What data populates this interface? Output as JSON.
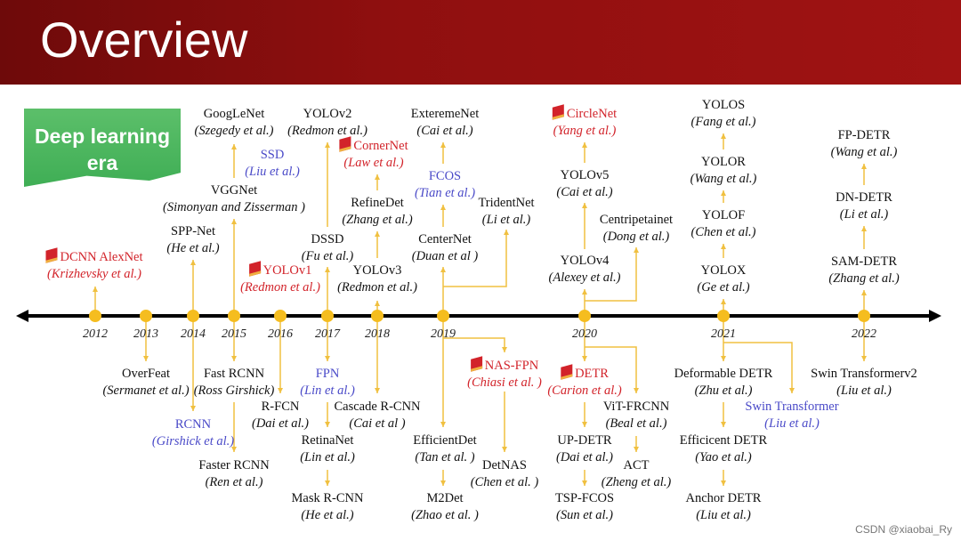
{
  "header": {
    "title": "Overview"
  },
  "banner": {
    "line1": "Deep learning",
    "line2": "era"
  },
  "colors": {
    "header": "#8f0f0f",
    "timeline": "#000000",
    "dots": "#f5bd1f",
    "arrows": "#f0c040",
    "highlight_red": "#d2232a",
    "highlight_blue": "#4a4ac8"
  },
  "years": [
    "2012",
    "2013",
    "2014",
    "2015",
    "2016",
    "2017",
    "2018",
    "2019",
    "2020",
    "2021",
    "2022"
  ],
  "nodes": [
    {
      "name": "GoogLeNet",
      "author": "(Szegedy et al.)",
      "style": "black"
    },
    {
      "name": "YOLOv2",
      "author": "(Redmon et al.)",
      "style": "black"
    },
    {
      "name": "ExteremeNet",
      "author": "(Cai et al.)",
      "style": "black"
    },
    {
      "name": "CornerNet",
      "author": "(Law et al.)",
      "style": "red",
      "flag": true
    },
    {
      "name": "SSD",
      "author": "(Liu et al.)",
      "style": "blue"
    },
    {
      "name": "FCOS",
      "author": "(Tian et al.)",
      "style": "blue"
    },
    {
      "name": "VGGNet",
      "author": "(Simonyan and Zisserman )",
      "style": "black"
    },
    {
      "name": "RefineDet",
      "author": "(Zhang et al.)",
      "style": "black"
    },
    {
      "name": "TridentNet",
      "author": "(Li et al.)",
      "style": "black"
    },
    {
      "name": "SPP-Net",
      "author": "(He et al.)",
      "style": "black"
    },
    {
      "name": "DSSD",
      "author": "(Fu et al.)",
      "style": "black"
    },
    {
      "name": "CenterNet",
      "author": "(Duan et al )",
      "style": "black"
    },
    {
      "name": "DCNN AlexNet",
      "author": "(Krizhevsky et al.)",
      "style": "red",
      "flag": true
    },
    {
      "name": "YOLOv1",
      "author": "(Redmon et al.)",
      "style": "red",
      "flag": true
    },
    {
      "name": "YOLOv3",
      "author": "(Redmon et al.)",
      "style": "black"
    },
    {
      "name": "CircleNet",
      "author": "(Yang et al.)",
      "style": "red",
      "flag": true
    },
    {
      "name": "YOLOv5",
      "author": "(Cai et al.)",
      "style": "black"
    },
    {
      "name": "Centripetainet",
      "author": "(Dong et al.)",
      "style": "black"
    },
    {
      "name": "YOLOv4",
      "author": "(Alexey et al.)",
      "style": "black"
    },
    {
      "name": "YOLOS",
      "author": "(Fang et al.)",
      "style": "black"
    },
    {
      "name": "YOLOR",
      "author": "(Wang et al.)",
      "style": "black"
    },
    {
      "name": "YOLOF",
      "author": "(Chen et al.)",
      "style": "black"
    },
    {
      "name": "YOLOX",
      "author": "(Ge et al.)",
      "style": "black"
    },
    {
      "name": "FP-DETR",
      "author": "(Wang et al.)",
      "style": "black"
    },
    {
      "name": "DN-DETR",
      "author": "(Li et al.)",
      "style": "black"
    },
    {
      "name": "SAM-DETR",
      "author": "(Zhang et al.)",
      "style": "black"
    },
    {
      "name": "OverFeat",
      "author": "(Sermanet et al.)",
      "style": "black"
    },
    {
      "name": "Fast RCNN",
      "author": "(Ross Girshick)",
      "style": "black"
    },
    {
      "name": "FPN",
      "author": "(Lin et al.)",
      "style": "blue"
    },
    {
      "name": "R-FCN",
      "author": "(Dai et al.)",
      "style": "black"
    },
    {
      "name": "Cascade R-CNN",
      "author": "(Cai et al )",
      "style": "black"
    },
    {
      "name": "RCNN",
      "author": "(Girshick et al.)",
      "style": "blue"
    },
    {
      "name": "RetinaNet",
      "author": "(Lin et al.)",
      "style": "black"
    },
    {
      "name": "Faster RCNN",
      "author": "(Ren et al.)",
      "style": "black"
    },
    {
      "name": "Mask R-CNN",
      "author": "(He et al.)",
      "style": "black"
    },
    {
      "name": "NAS-FPN",
      "author": "(Chiasi et al. )",
      "style": "red",
      "flag": true
    },
    {
      "name": "EfficientDet",
      "author": "(Tan et al. )",
      "style": "black"
    },
    {
      "name": "DetNAS",
      "author": "(Chen et al. )",
      "style": "black"
    },
    {
      "name": "M2Det",
      "author": "(Zhao et al. )",
      "style": "black"
    },
    {
      "name": "DETR",
      "author": "(Carion et al.)",
      "style": "red",
      "flag": true
    },
    {
      "name": "ViT-FRCNN",
      "author": "(Beal et al.)",
      "style": "black"
    },
    {
      "name": "UP-DETR",
      "author": "(Dai et al.)",
      "style": "black"
    },
    {
      "name": "ACT",
      "author": "(Zheng et al.)",
      "style": "black"
    },
    {
      "name": "TSP-FCOS",
      "author": "(Sun et al.)",
      "style": "black"
    },
    {
      "name": "Deformable DETR",
      "author": "(Zhu et al.)",
      "style": "black"
    },
    {
      "name": "Swin Transformer",
      "author": "(Liu et al.)",
      "style": "blue"
    },
    {
      "name": "Efficicent DETR",
      "author": "(Yao et al.)",
      "style": "black"
    },
    {
      "name": "Anchor DETR",
      "author": "(Liu et al.)",
      "style": "black"
    },
    {
      "name": "Swin Transformerv2",
      "author": "(Liu et al.)",
      "style": "black"
    }
  ],
  "footer": {
    "watermark": "CSDN @xiaobai_Ry"
  }
}
